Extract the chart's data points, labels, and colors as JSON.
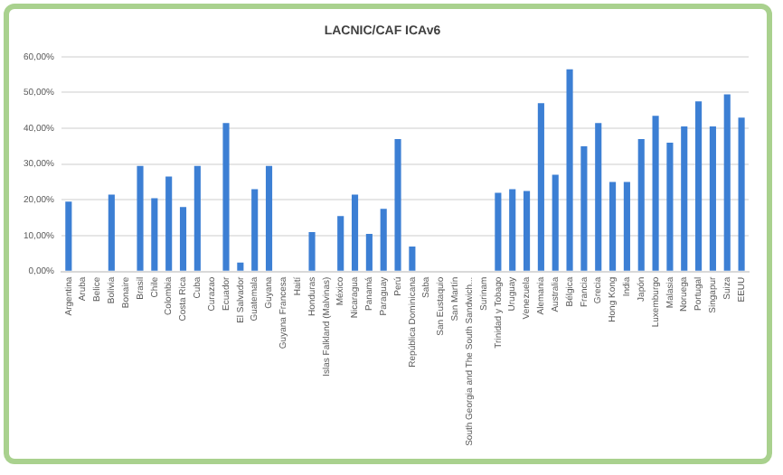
{
  "chart_data": {
    "type": "bar",
    "title": "LACNIC/CAF ICAv6",
    "categories": [
      "Argentina",
      "Aruba",
      "Belice",
      "Bolivia",
      "Bonaire",
      "Brasil",
      "Chile",
      "Colombia",
      "Costa Rica",
      "Cuba",
      "Curazao",
      "Ecuador",
      "El Salvador",
      "Guatemala",
      "Guyana",
      "Guyana Francesa",
      "Haití",
      "Honduras",
      "Islas Falkland (Malvinas)",
      "México",
      "Nicaragua",
      "Panamá",
      "Paraguay",
      "Perú",
      "República Dominicana",
      "Saba",
      "San Eustaquio",
      "San Martín",
      "South Georgia and The South Sandwich...",
      "Surinam",
      "Trinidad y Tobago",
      "Uruguay",
      "Venezuela",
      "Alemania",
      "Australia",
      "Bélgica",
      "Francia",
      "Grecia",
      "Hong Kong",
      "India",
      "Japón",
      "Luxemburgo",
      "Malasia",
      "Noruega",
      "Portugal",
      "Singapur",
      "Suiza",
      "EEUU"
    ],
    "values": [
      19.5,
      0,
      0,
      21.5,
      0,
      29.5,
      20.5,
      26.5,
      18,
      29.5,
      0,
      41.5,
      2.5,
      23,
      29.5,
      0,
      0,
      11,
      0,
      15.5,
      21.5,
      10.5,
      17.5,
      37,
      7,
      0,
      0,
      0,
      0,
      0,
      22,
      23,
      22.5,
      47,
      27,
      56.5,
      35,
      41.5,
      25,
      25,
      37,
      43.5,
      36,
      40.5,
      47.5,
      40.5,
      49.5,
      43
    ],
    "color": "#3c7fd4",
    "ylim": [
      0,
      60
    ],
    "yticks": [
      {
        "value": 0,
        "label": "0,00%"
      },
      {
        "value": 10,
        "label": "10,00%"
      },
      {
        "value": 20,
        "label": "20,00%"
      },
      {
        "value": 30,
        "label": "30,00%"
      },
      {
        "value": 40,
        "label": "40,00%"
      },
      {
        "value": 50,
        "label": "50,00%"
      },
      {
        "value": 60,
        "label": "60,00%"
      }
    ],
    "grid": "y"
  }
}
